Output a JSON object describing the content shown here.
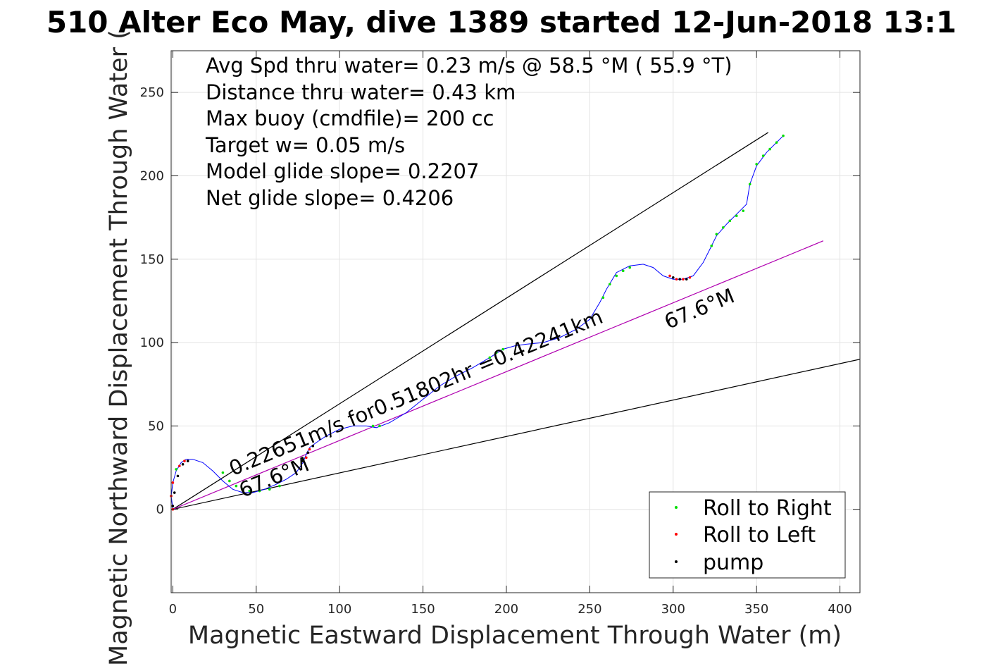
{
  "chart_data": {
    "type": "scatter",
    "title": "510 Alter Eco May, dive 1389 started 12-Jun-2018 13:1",
    "xlabel": "Magnetic Eastward Displacement Through Water (m)",
    "ylabel": "Magnetic Northward Displacement Through Water (",
    "xlim": [
      -1,
      412
    ],
    "ylim": [
      -50,
      275
    ],
    "xticks": [
      0,
      50,
      100,
      150,
      200,
      250,
      300,
      350,
      400
    ],
    "yticks": [
      0,
      50,
      100,
      150,
      200,
      250
    ],
    "grid": true,
    "legend_position": "bottom-right",
    "info_lines": [
      "Avg Spd thru water=  0.23 m/s @  58.5 °M ( 55.9 °T)",
      "Distance thru water=  0.43 km",
      "Max buoy (cmdfile)= 200 cc",
      "Target w= 0.05 m/s",
      "Model glide slope= 0.2207",
      "Net glide slope= 0.4206"
    ],
    "annotations": [
      {
        "text": "0.22651m/s for0.51802hr =0.42241km",
        "x": 36,
        "y": 20,
        "angle": -22.5
      },
      {
        "text": "67.6°M",
        "x": 42,
        "y": 7,
        "angle": -22.5
      },
      {
        "text": "67.6°M",
        "x": 297,
        "y": 108,
        "angle": -22.5
      }
    ],
    "reference_lines": [
      {
        "name": "upper bound",
        "color": "#000000",
        "x": [
          0,
          357
        ],
        "y": [
          0,
          226
        ]
      },
      {
        "name": "lower bound",
        "color": "#000000",
        "x": [
          0,
          412
        ],
        "y": [
          0,
          90
        ]
      },
      {
        "name": "heading line",
        "color": "#b000b0",
        "x": [
          0,
          390
        ],
        "y": [
          0,
          161
        ]
      }
    ],
    "trajectory": {
      "color": "#0000ff",
      "x": [
        0,
        -1,
        0,
        2,
        5,
        8,
        12,
        18,
        24,
        30,
        36,
        42,
        48,
        55,
        62,
        68,
        74,
        78,
        80,
        82,
        86,
        92,
        100,
        108,
        116,
        122,
        130,
        140,
        150,
        160,
        170,
        180,
        190,
        198,
        205,
        212,
        222,
        232,
        242,
        250,
        256,
        260,
        266,
        274,
        282,
        288,
        294,
        300,
        306,
        312,
        318,
        322,
        326,
        332,
        340,
        344,
        346,
        350,
        356,
        362,
        366
      ],
      "y": [
        0,
        8,
        16,
        23,
        28,
        30,
        30,
        28,
        23,
        17,
        12,
        10,
        10,
        12,
        15,
        18,
        22,
        28,
        33,
        37,
        40,
        44,
        48,
        50,
        50,
        49,
        52,
        58,
        66,
        74,
        80,
        85,
        91,
        96,
        98,
        99,
        100,
        103,
        108,
        114,
        124,
        132,
        142,
        146,
        147,
        145,
        140,
        138,
        138,
        140,
        148,
        156,
        164,
        171,
        179,
        183,
        195,
        206,
        214,
        220,
        224
      ]
    },
    "series": [
      {
        "name": "Roll to Right",
        "color": "#00dd00",
        "x": [
          2,
          30,
          34,
          38,
          42,
          46,
          52,
          58,
          64,
          120,
          124,
          190,
          194,
          198,
          258,
          262,
          266,
          270,
          274,
          323,
          326,
          330,
          334,
          338,
          342,
          346,
          350,
          354,
          358,
          362,
          366
        ],
        "y": [
          24,
          22,
          17,
          14,
          12,
          11,
          11,
          12,
          14,
          50,
          50,
          91,
          94,
          96,
          127,
          135,
          140,
          143,
          145,
          158,
          165,
          169,
          173,
          176,
          179,
          195,
          207,
          212,
          216,
          220,
          224
        ]
      },
      {
        "name": "Roll to Left",
        "color": "#ff0000",
        "x": [
          0,
          -1,
          0,
          4,
          7,
          80,
          82,
          298,
          302,
          306,
          310
        ],
        "y": [
          0,
          8,
          16,
          26,
          29,
          31,
          36,
          140,
          138,
          138,
          139
        ]
      },
      {
        "name": "pump",
        "color": "#000000",
        "x": [
          0,
          1,
          3,
          6,
          9,
          78,
          81,
          84,
          300,
          304,
          308
        ],
        "y": [
          2,
          10,
          20,
          27,
          29,
          29,
          34,
          38,
          139,
          138,
          138
        ]
      }
    ]
  }
}
